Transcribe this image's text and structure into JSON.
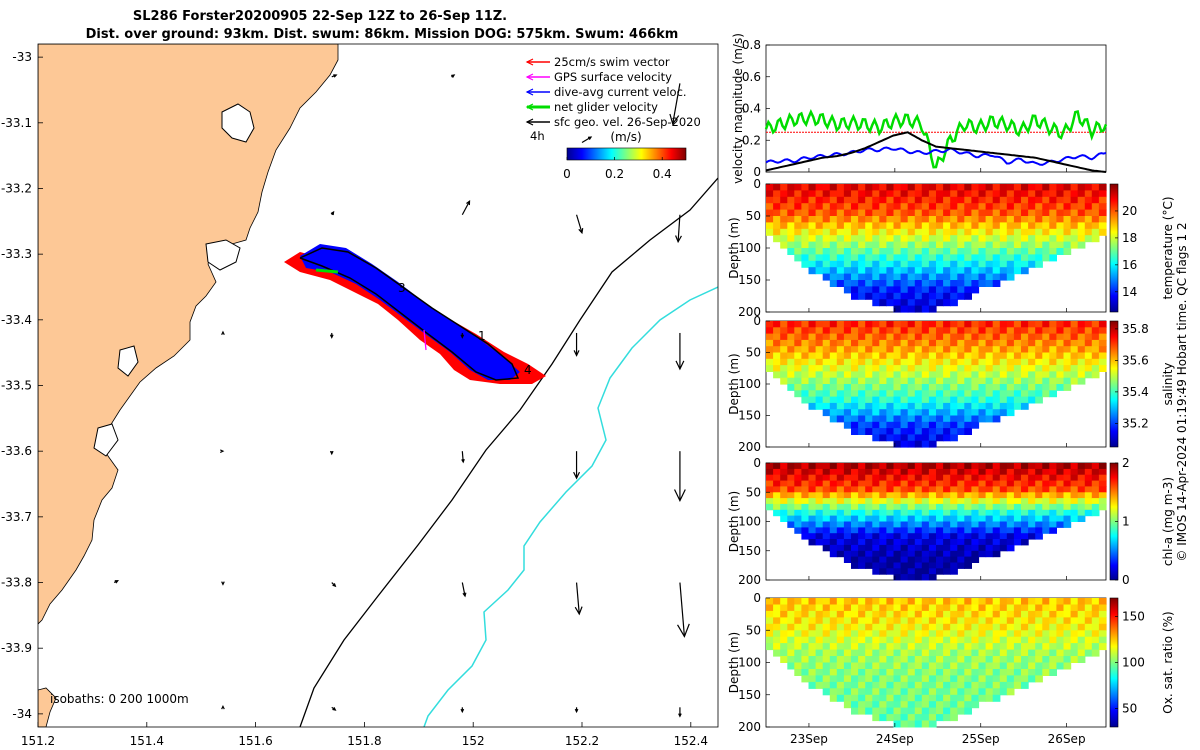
{
  "title_line1": "SL286 Forster20200905 22-Sep 12Z to 26-Sep 11Z.",
  "title_line2": "Dist. over ground: 93km. Dist. swum: 86km. Mission DOG: 575km. Swum: 466km",
  "credit": "© IMOS 14-Apr-2024 01:19:49 Hobart time. QC flags 1  2",
  "colors": {
    "land": "#fdc896",
    "swim": "#ff0000",
    "gps": "#ff00ff",
    "current": "#0000ff",
    "net": "#00dd00",
    "shelf_200": "#000000",
    "isobath_1000": "#33dddd"
  },
  "chart_data": [
    {
      "type": "map",
      "xlim": [
        151.2,
        152.45
      ],
      "ylim": [
        -34.02,
        -32.98
      ],
      "x_ticks": [
        "151.2",
        "151.4",
        "151.6",
        "151.8",
        "152",
        "152.2",
        "152.4"
      ],
      "y_ticks": [
        "-33",
        "-33.1",
        "-33.2",
        "-33.3",
        "-33.4",
        "-33.5",
        "-33.6",
        "-33.7",
        "-33.8",
        "-33.9",
        "-34"
      ],
      "legend": {
        "items": [
          {
            "label": "25cm/s swim vector",
            "color": "#ff0000"
          },
          {
            "label": "GPS surface velocity",
            "color": "#ff00ff"
          },
          {
            "label": "dive-avg current veloc.",
            "color": "#0000ff"
          },
          {
            "label": "net glider velocity",
            "color": "#00dd00"
          },
          {
            "label": "sfc geo. vel. 26-Sep-2020",
            "color": "#000000"
          }
        ],
        "placement": "top-right"
      },
      "scale_label": "4h",
      "colorbar": {
        "label": "(m/s)",
        "ticks": [
          "0",
          "0.2",
          "0.4"
        ],
        "range": [
          0,
          0.5
        ]
      },
      "isobath_note": "isobaths: 0   200  1000m",
      "track_labels": [
        "3",
        "1",
        "4"
      ],
      "geo_vectors": [
        {
          "lon": 151.74,
          "lat": -33.03,
          "u": 0.05,
          "v": 0.02
        },
        {
          "lon": 151.96,
          "lat": -33.03,
          "u": 0.03,
          "v": 0.02
        },
        {
          "lon": 152.2,
          "lat": -33.13,
          "u": 0.1,
          "v": 0.06
        },
        {
          "lon": 152.38,
          "lat": -33.04,
          "u": -0.08,
          "v": -0.45
        },
        {
          "lon": 151.74,
          "lat": -33.24,
          "u": 0.02,
          "v": 0.03
        },
        {
          "lon": 151.98,
          "lat": -33.24,
          "u": 0.08,
          "v": 0.15
        },
        {
          "lon": 152.19,
          "lat": -33.24,
          "u": 0.06,
          "v": -0.2
        },
        {
          "lon": 152.38,
          "lat": -33.24,
          "u": -0.02,
          "v": -0.3
        },
        {
          "lon": 151.54,
          "lat": -33.42,
          "u": 0.0,
          "v": 0.01
        },
        {
          "lon": 151.74,
          "lat": -33.42,
          "u": 0.0,
          "v": -0.05
        },
        {
          "lon": 151.98,
          "lat": -33.42,
          "u": 0.0,
          "v": -0.05
        },
        {
          "lon": 152.19,
          "lat": -33.42,
          "u": 0.0,
          "v": -0.25
        },
        {
          "lon": 152.38,
          "lat": -33.42,
          "u": 0.0,
          "v": -0.4
        },
        {
          "lon": 151.54,
          "lat": -33.6,
          "u": 0.0,
          "v": 0.0
        },
        {
          "lon": 151.74,
          "lat": -33.6,
          "u": 0.0,
          "v": -0.03
        },
        {
          "lon": 151.98,
          "lat": -33.6,
          "u": 0.01,
          "v": -0.12
        },
        {
          "lon": 152.19,
          "lat": -33.6,
          "u": 0.0,
          "v": -0.3
        },
        {
          "lon": 152.38,
          "lat": -33.6,
          "u": 0.0,
          "v": -0.55
        },
        {
          "lon": 151.34,
          "lat": -33.8,
          "u": 0.04,
          "v": 0.02
        },
        {
          "lon": 151.54,
          "lat": -33.8,
          "u": 0.0,
          "v": -0.02
        },
        {
          "lon": 151.74,
          "lat": -33.8,
          "u": 0.04,
          "v": -0.04
        },
        {
          "lon": 151.98,
          "lat": -33.8,
          "u": 0.03,
          "v": -0.15
        },
        {
          "lon": 152.19,
          "lat": -33.8,
          "u": 0.03,
          "v": -0.35
        },
        {
          "lon": 152.38,
          "lat": -33.8,
          "u": 0.05,
          "v": -0.6
        },
        {
          "lon": 151.54,
          "lat": -33.99,
          "u": 0.0,
          "v": 0.01
        },
        {
          "lon": 151.74,
          "lat": -33.99,
          "u": 0.04,
          "v": -0.03
        },
        {
          "lon": 151.98,
          "lat": -33.99,
          "u": 0.0,
          "v": -0.05
        },
        {
          "lon": 152.19,
          "lat": -33.99,
          "u": 0.0,
          "v": -0.05
        },
        {
          "lon": 152.38,
          "lat": -33.99,
          "u": 0.0,
          "v": -0.1
        }
      ]
    },
    {
      "type": "line",
      "ylabel": "velocity magnitude (m/s)",
      "ylim": [
        0,
        0.8
      ],
      "y_ticks": [
        "0",
        "0.2",
        "0.4",
        "0.6",
        "0.8"
      ],
      "x_range_days": [
        "22-Sep 12Z",
        "26-Sep 11Z"
      ],
      "series": [
        {
          "color": "#ff0000",
          "values": [
            0.25,
            0.25,
            0.25,
            0.25,
            0.25,
            0.25,
            0.25,
            0.25,
            0.25,
            0.25,
            0.25,
            0.25,
            0.25,
            0.25,
            0.25,
            0.25,
            0.25,
            0.25,
            0.25,
            0.25,
            0.25,
            0.25,
            0.25,
            0.25,
            0.25
          ]
        },
        {
          "color": "#00dd00",
          "values": [
            0.27,
            0.3,
            0.33,
            0.34,
            0.33,
            0.3,
            0.31,
            0.3,
            0.28,
            0.32,
            0.33,
            0.3,
            0.02,
            0.2,
            0.3,
            0.28,
            0.32,
            0.3,
            0.26,
            0.33,
            0.28,
            0.24,
            0.36,
            0.26,
            0.3
          ]
        },
        {
          "color": "#0000ff",
          "values": [
            0.06,
            0.07,
            0.07,
            0.09,
            0.1,
            0.11,
            0.12,
            0.14,
            0.14,
            0.15,
            0.13,
            0.12,
            0.13,
            0.14,
            0.12,
            0.1,
            0.11,
            0.06,
            0.08,
            0.05,
            0.06,
            0.08,
            0.1,
            0.09,
            0.12
          ]
        },
        {
          "color": "#000000",
          "values": [
            0.01,
            0.03,
            0.05,
            0.07,
            0.09,
            0.1,
            0.12,
            0.15,
            0.19,
            0.23,
            0.25,
            0.2,
            0.16,
            0.15,
            0.14,
            0.13,
            0.12,
            0.11,
            0.1,
            0.09,
            0.07,
            0.05,
            0.03,
            0.01,
            0.0
          ]
        }
      ]
    },
    {
      "type": "heatmap",
      "ylabel": "Depth (m)",
      "colorbar_label": "temperature (°C)",
      "colorbar_ticks": [
        "14",
        "16",
        "18",
        "20"
      ],
      "clim": [
        12.5,
        22
      ],
      "ylim": [
        0,
        200
      ],
      "y_ticks": [
        "0",
        "50",
        "100",
        "150",
        "200"
      ],
      "section_max_depth": [
        70,
        120,
        150,
        175,
        190,
        195,
        185,
        160,
        140,
        120,
        100,
        75
      ],
      "profile": [
        21,
        20,
        18,
        16,
        14,
        13
      ]
    },
    {
      "type": "heatmap",
      "ylabel": "Depth (m)",
      "colorbar_label": "salinity",
      "colorbar_ticks": [
        "35.2",
        "35.4",
        "35.6",
        "35.8"
      ],
      "clim": [
        35.05,
        35.85
      ],
      "ylim": [
        0,
        200
      ],
      "y_ticks": [
        "0",
        "50",
        "100",
        "150",
        "200"
      ],
      "section_max_depth": [
        70,
        120,
        150,
        175,
        190,
        195,
        185,
        160,
        140,
        120,
        100,
        75
      ],
      "profile": [
        35.72,
        35.62,
        35.5,
        35.38,
        35.2,
        35.1
      ]
    },
    {
      "type": "heatmap",
      "ylabel": "Depth (m)",
      "colorbar_label": "chl-a (mg m-3)",
      "colorbar_ticks": [
        "0",
        "1",
        "2"
      ],
      "clim": [
        0,
        2
      ],
      "ylim": [
        0,
        200
      ],
      "y_ticks": [
        "0",
        "50",
        "100",
        "150",
        "200"
      ],
      "section_max_depth": [
        70,
        120,
        150,
        175,
        190,
        195,
        185,
        160,
        140,
        120,
        100,
        75
      ],
      "profile": [
        1.9,
        1.6,
        0.8,
        0.2,
        0.05,
        0.02
      ]
    },
    {
      "type": "heatmap",
      "ylabel": "Depth (m)",
      "colorbar_label": "Ox. sat. ratio (%)",
      "colorbar_ticks": [
        "50",
        "100",
        "150"
      ],
      "clim": [
        30,
        170
      ],
      "ylim": [
        0,
        200
      ],
      "y_ticks": [
        "0",
        "50",
        "100",
        "150",
        "200"
      ],
      "section_max_depth": [
        70,
        120,
        150,
        175,
        190,
        195,
        185,
        160,
        140,
        120,
        100,
        75
      ],
      "profile": [
        125,
        118,
        105,
        100,
        98,
        95
      ]
    }
  ],
  "time_axis": {
    "ticks": [
      "23Sep",
      "24Sep",
      "25Sep",
      "26Sep"
    ]
  }
}
